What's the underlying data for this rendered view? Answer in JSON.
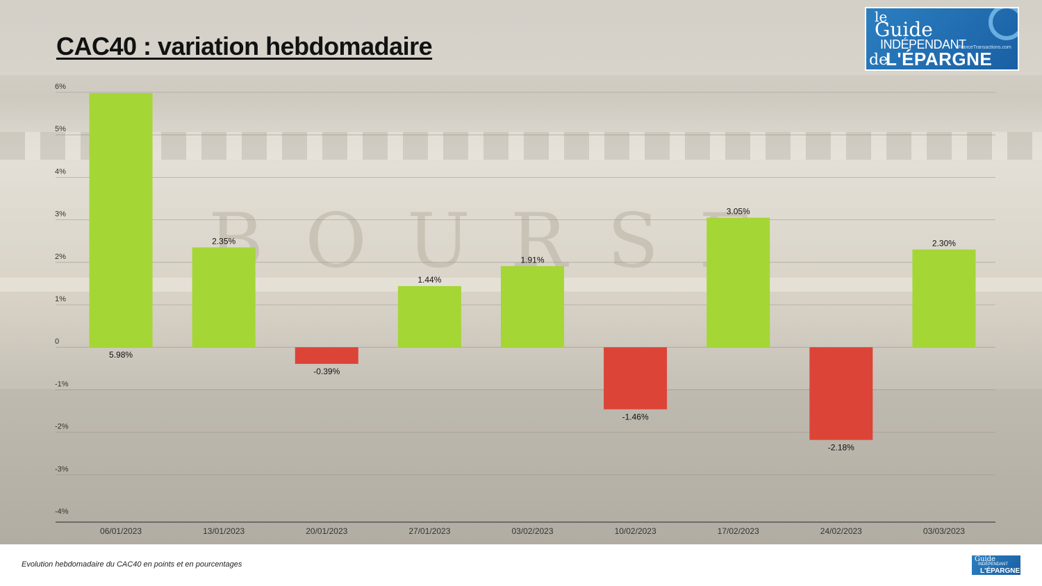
{
  "title": "CAC40 : variation hebdomadaire",
  "caption": "Evolution hebdomadaire du CAC40 en points et en pourcentages",
  "background": {
    "facade_text": "BOURSE"
  },
  "logo": {
    "line1": "le",
    "line2": "Guide",
    "line3": "INDÉPENDANT",
    "line4": "de",
    "line5": "L'ÉPARGNE",
    "line6": "FranceTransactions.com"
  },
  "logo_small": {
    "line1": "Guide",
    "line2": "INDÉPENDANT",
    "line3": "L'ÉPARGNE"
  },
  "colors": {
    "positive": "#a4d635",
    "negative": "#dc4437",
    "gridline": "#9a968e",
    "axis": "#555555"
  },
  "chart_data": {
    "type": "bar",
    "title": "CAC40 : variation hebdomadaire",
    "categories": [
      "06/01/2023",
      "13/01/2023",
      "20/01/2023",
      "27/01/2023",
      "03/02/2023",
      "10/02/2023",
      "17/02/2023",
      "24/02/2023",
      "03/03/2023"
    ],
    "values": [
      5.98,
      2.35,
      -0.39,
      1.44,
      1.91,
      -1.46,
      3.05,
      -2.18,
      2.3
    ],
    "data_labels": [
      "5.98%",
      "2.35%",
      "-0.39%",
      "1.44%",
      "1.91%",
      "-1.46%",
      "3.05%",
      "-2.18%",
      "2.30%"
    ],
    "yticks": [
      6,
      5,
      4,
      3,
      2,
      1,
      0,
      -1,
      -2,
      -3,
      -4
    ],
    "ytick_labels": [
      "6%",
      "5%",
      "4%",
      "3%",
      "2%",
      "1%",
      "0",
      "-1%",
      "-2%",
      "-3%",
      "-4%"
    ],
    "ylim": [
      -4,
      6
    ],
    "grid": true,
    "xlabel": "",
    "ylabel": ""
  }
}
